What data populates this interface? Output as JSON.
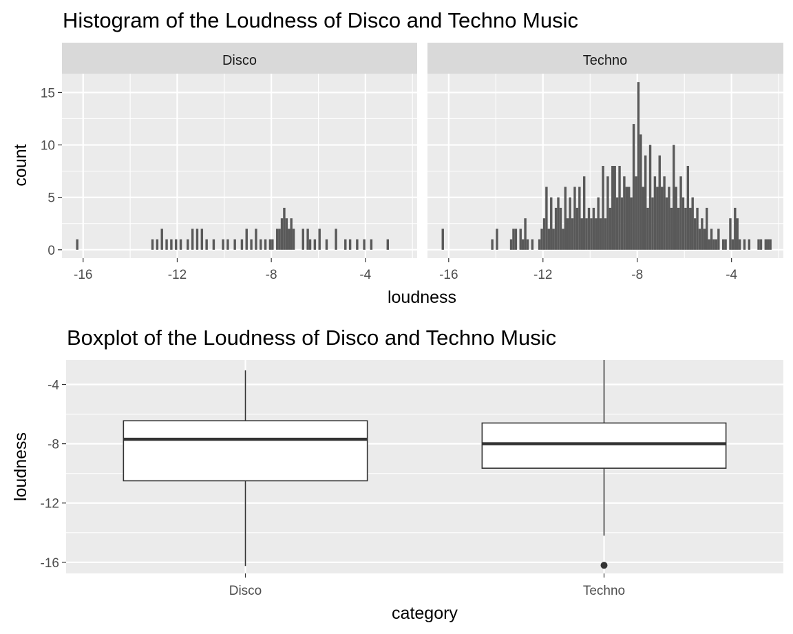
{
  "chart_data": [
    {
      "type": "histogram",
      "title": "Histogram of the Loudness of Disco and Techno Music",
      "xlabel": "loudness",
      "ylabel": "count",
      "xlim": [
        -16.9,
        -1.8
      ],
      "ylim": [
        -0.8,
        16.8
      ],
      "x_ticks": [
        -16,
        -12,
        -8,
        -4
      ],
      "x_tick_labels": [
        "-16",
        "-12",
        "-8",
        "-4"
      ],
      "y_ticks": [
        0,
        5,
        10,
        15
      ],
      "y_tick_labels": [
        "0",
        "5",
        "10",
        "15"
      ],
      "bin_width": 0.1,
      "grid": true,
      "colors": {
        "bar": "#595959",
        "panel": "#ebebeb",
        "grid": "#ffffff",
        "strip": "#d9d9d9"
      },
      "facets": [
        {
          "name": "Disco",
          "bins": [
            {
              "x": -16.25,
              "count": 1
            },
            {
              "x": -13.05,
              "count": 1
            },
            {
              "x": -12.85,
              "count": 1
            },
            {
              "x": -12.65,
              "count": 2
            },
            {
              "x": -12.45,
              "count": 1
            },
            {
              "x": -12.25,
              "count": 1
            },
            {
              "x": -12.05,
              "count": 1
            },
            {
              "x": -11.85,
              "count": 1
            },
            {
              "x": -11.55,
              "count": 1
            },
            {
              "x": -11.35,
              "count": 2
            },
            {
              "x": -11.15,
              "count": 2
            },
            {
              "x": -10.95,
              "count": 2
            },
            {
              "x": -10.75,
              "count": 1
            },
            {
              "x": -10.45,
              "count": 1
            },
            {
              "x": -10.05,
              "count": 1
            },
            {
              "x": -9.85,
              "count": 1
            },
            {
              "x": -9.55,
              "count": 1
            },
            {
              "x": -9.25,
              "count": 1
            },
            {
              "x": -9.05,
              "count": 2
            },
            {
              "x": -8.85,
              "count": 1
            },
            {
              "x": -8.65,
              "count": 2
            },
            {
              "x": -8.45,
              "count": 1
            },
            {
              "x": -8.25,
              "count": 1
            },
            {
              "x": -8.05,
              "count": 1
            },
            {
              "x": -7.95,
              "count": 1
            },
            {
              "x": -7.75,
              "count": 2
            },
            {
              "x": -7.65,
              "count": 2
            },
            {
              "x": -7.55,
              "count": 3
            },
            {
              "x": -7.45,
              "count": 4
            },
            {
              "x": -7.35,
              "count": 3
            },
            {
              "x": -7.25,
              "count": 2
            },
            {
              "x": -7.15,
              "count": 3
            },
            {
              "x": -7.05,
              "count": 2
            },
            {
              "x": -6.65,
              "count": 2
            },
            {
              "x": -6.45,
              "count": 2
            },
            {
              "x": -6.35,
              "count": 1
            },
            {
              "x": -6.15,
              "count": 1
            },
            {
              "x": -5.95,
              "count": 2
            },
            {
              "x": -5.65,
              "count": 1
            },
            {
              "x": -5.25,
              "count": 2
            },
            {
              "x": -4.85,
              "count": 1
            },
            {
              "x": -4.65,
              "count": 1
            },
            {
              "x": -4.35,
              "count": 1
            },
            {
              "x": -4.05,
              "count": 1
            },
            {
              "x": -3.75,
              "count": 1
            },
            {
              "x": -3.05,
              "count": 1
            }
          ]
        },
        {
          "name": "Techno",
          "bins": [
            {
              "x": -16.25,
              "count": 2
            },
            {
              "x": -14.15,
              "count": 1
            },
            {
              "x": -13.95,
              "count": 2
            },
            {
              "x": -13.35,
              "count": 1
            },
            {
              "x": -13.25,
              "count": 2
            },
            {
              "x": -13.15,
              "count": 2
            },
            {
              "x": -12.95,
              "count": 2
            },
            {
              "x": -12.85,
              "count": 1
            },
            {
              "x": -12.75,
              "count": 3
            },
            {
              "x": -12.65,
              "count": 1
            },
            {
              "x": -12.45,
              "count": 1
            },
            {
              "x": -12.15,
              "count": 1
            },
            {
              "x": -12.05,
              "count": 2
            },
            {
              "x": -11.95,
              "count": 3
            },
            {
              "x": -11.85,
              "count": 6
            },
            {
              "x": -11.75,
              "count": 2
            },
            {
              "x": -11.65,
              "count": 5
            },
            {
              "x": -11.55,
              "count": 2
            },
            {
              "x": -11.45,
              "count": 4
            },
            {
              "x": -11.35,
              "count": 5
            },
            {
              "x": -11.25,
              "count": 4
            },
            {
              "x": -11.15,
              "count": 2
            },
            {
              "x": -11.05,
              "count": 6
            },
            {
              "x": -10.95,
              "count": 3
            },
            {
              "x": -10.85,
              "count": 5
            },
            {
              "x": -10.75,
              "count": 3
            },
            {
              "x": -10.65,
              "count": 6
            },
            {
              "x": -10.55,
              "count": 4
            },
            {
              "x": -10.45,
              "count": 6
            },
            {
              "x": -10.35,
              "count": 3
            },
            {
              "x": -10.25,
              "count": 7
            },
            {
              "x": -10.15,
              "count": 3
            },
            {
              "x": -10.05,
              "count": 4
            },
            {
              "x": -9.95,
              "count": 3
            },
            {
              "x": -9.85,
              "count": 4
            },
            {
              "x": -9.75,
              "count": 3
            },
            {
              "x": -9.65,
              "count": 5
            },
            {
              "x": -9.55,
              "count": 3
            },
            {
              "x": -9.45,
              "count": 8
            },
            {
              "x": -9.35,
              "count": 3
            },
            {
              "x": -9.25,
              "count": 7
            },
            {
              "x": -9.15,
              "count": 4
            },
            {
              "x": -9.05,
              "count": 8
            },
            {
              "x": -8.95,
              "count": 8
            },
            {
              "x": -8.85,
              "count": 5
            },
            {
              "x": -8.75,
              "count": 8
            },
            {
              "x": -8.65,
              "count": 5
            },
            {
              "x": -8.55,
              "count": 7
            },
            {
              "x": -8.45,
              "count": 6
            },
            {
              "x": -8.35,
              "count": 6
            },
            {
              "x": -8.25,
              "count": 5
            },
            {
              "x": -8.15,
              "count": 12
            },
            {
              "x": -8.05,
              "count": 7
            },
            {
              "x": -7.95,
              "count": 16
            },
            {
              "x": -7.85,
              "count": 11
            },
            {
              "x": -7.75,
              "count": 6
            },
            {
              "x": -7.65,
              "count": 9
            },
            {
              "x": -7.55,
              "count": 4
            },
            {
              "x": -7.45,
              "count": 10
            },
            {
              "x": -7.35,
              "count": 5
            },
            {
              "x": -7.25,
              "count": 7
            },
            {
              "x": -7.15,
              "count": 6
            },
            {
              "x": -7.05,
              "count": 9
            },
            {
              "x": -6.95,
              "count": 6
            },
            {
              "x": -6.85,
              "count": 7
            },
            {
              "x": -6.75,
              "count": 5
            },
            {
              "x": -6.65,
              "count": 6
            },
            {
              "x": -6.55,
              "count": 4
            },
            {
              "x": -6.45,
              "count": 10
            },
            {
              "x": -6.35,
              "count": 6
            },
            {
              "x": -6.25,
              "count": 4
            },
            {
              "x": -6.15,
              "count": 7
            },
            {
              "x": -6.05,
              "count": 5
            },
            {
              "x": -5.95,
              "count": 4
            },
            {
              "x": -5.85,
              "count": 8
            },
            {
              "x": -5.75,
              "count": 4
            },
            {
              "x": -5.65,
              "count": 5
            },
            {
              "x": -5.55,
              "count": 3
            },
            {
              "x": -5.45,
              "count": 4
            },
            {
              "x": -5.35,
              "count": 2
            },
            {
              "x": -5.25,
              "count": 3
            },
            {
              "x": -5.15,
              "count": 2
            },
            {
              "x": -5.05,
              "count": 4
            },
            {
              "x": -4.95,
              "count": 1
            },
            {
              "x": -4.85,
              "count": 2
            },
            {
              "x": -4.75,
              "count": 1
            },
            {
              "x": -4.65,
              "count": 1
            },
            {
              "x": -4.55,
              "count": 2
            },
            {
              "x": -4.35,
              "count": 1
            },
            {
              "x": -4.25,
              "count": 1
            },
            {
              "x": -4.05,
              "count": 3
            },
            {
              "x": -3.95,
              "count": 1
            },
            {
              "x": -3.85,
              "count": 4
            },
            {
              "x": -3.75,
              "count": 3
            },
            {
              "x": -3.65,
              "count": 1
            },
            {
              "x": -3.45,
              "count": 1
            },
            {
              "x": -3.25,
              "count": 1
            },
            {
              "x": -2.85,
              "count": 1
            },
            {
              "x": -2.75,
              "count": 1
            },
            {
              "x": -2.55,
              "count": 1
            },
            {
              "x": -2.45,
              "count": 1
            },
            {
              "x": -2.35,
              "count": 1
            }
          ]
        }
      ]
    },
    {
      "type": "boxplot",
      "title": "Boxplot of the Loudness of Disco and Techno Music",
      "xlabel": "category",
      "ylabel": "loudness",
      "categories": [
        "Disco",
        "Techno"
      ],
      "ylim": [
        -16.75,
        -2.35
      ],
      "y_ticks": [
        -4,
        -8,
        -12,
        -16
      ],
      "y_tick_labels": [
        "-4",
        "-8",
        "-12",
        "-16"
      ],
      "grid": true,
      "colors": {
        "box_fill": "#ffffff",
        "box_line": "#333333",
        "outlier": "#333333",
        "panel": "#ebebeb",
        "grid": "#ffffff"
      },
      "boxes": [
        {
          "category": "Disco",
          "min": -16.25,
          "q1": -10.5,
          "median": -7.7,
          "q3": -6.45,
          "max": -3.05,
          "outliers": []
        },
        {
          "category": "Techno",
          "min": -14.2,
          "q1": -9.65,
          "median": -8.0,
          "q3": -6.6,
          "max": -2.35,
          "outliers": [
            -16.2
          ]
        }
      ]
    }
  ]
}
